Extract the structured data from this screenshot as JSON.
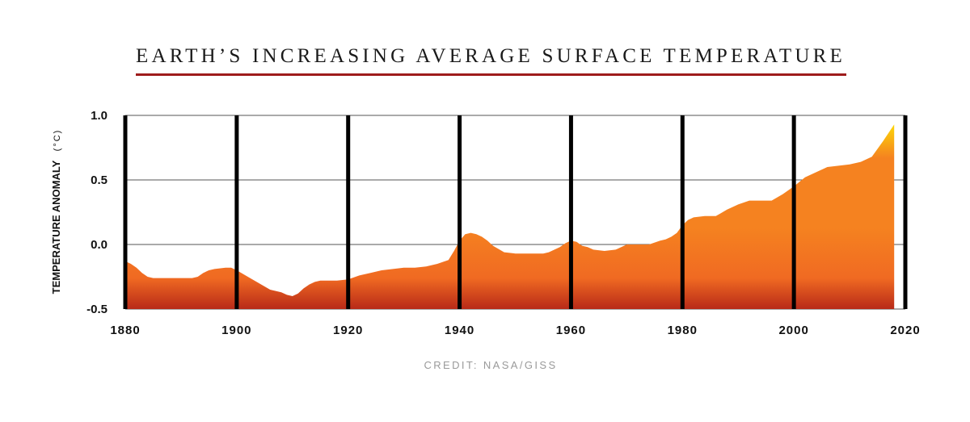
{
  "title": "EARTH’S INCREASING AVERAGE SURFACE TEMPERATURE",
  "credit": "CREDIT: NASA/GISS",
  "colors": {
    "title_rule": "#9e1b1b",
    "gradient_top": "#ffee00",
    "gradient_mid": "#f58220",
    "gradient_low": "#f06a22",
    "gradient_bottom": "#b82a18",
    "grid": "#555555",
    "year_bars": "#000000"
  },
  "chart_data": {
    "type": "area",
    "title": "EARTH’S INCREASING AVERAGE SURFACE TEMPERATURE",
    "ylabel": "TEMPERATURE ANOMALY",
    "ylabel_unit": "(°C)",
    "xlabel": "",
    "xlim": [
      1880,
      2020
    ],
    "ylim": [
      -0.5,
      1.0
    ],
    "xticks": [
      "1880",
      "1900",
      "1920",
      "1940",
      "1960",
      "1980",
      "2000",
      "2020"
    ],
    "yticks": [
      "1.0",
      "0.5",
      "0.0",
      "-0.5"
    ],
    "ytick_values": [
      1.0,
      0.5,
      0.0,
      -0.5
    ],
    "xtick_values": [
      1880,
      1900,
      1920,
      1940,
      1960,
      1980,
      2000,
      2020
    ],
    "grid": true,
    "x": [
      1880,
      1881,
      1882,
      1883,
      1884,
      1885,
      1886,
      1888,
      1890,
      1892,
      1893,
      1894,
      1895,
      1896,
      1898,
      1899,
      1900,
      1902,
      1904,
      1906,
      1908,
      1909,
      1910,
      1911,
      1912,
      1913,
      1914,
      1915,
      1916,
      1918,
      1920,
      1922,
      1924,
      1926,
      1928,
      1930,
      1932,
      1934,
      1936,
      1938,
      1939,
      1940,
      1941,
      1942,
      1943,
      1944,
      1945,
      1946,
      1948,
      1950,
      1952,
      1954,
      1955,
      1956,
      1958,
      1959,
      1960,
      1961,
      1962,
      1963,
      1964,
      1966,
      1968,
      1969,
      1970,
      1972,
      1974,
      1976,
      1977,
      1978,
      1979,
      1980,
      1981,
      1982,
      1984,
      1986,
      1988,
      1990,
      1992,
      1994,
      1996,
      1998,
      2000,
      2002,
      2004,
      2006,
      2008,
      2010,
      2012,
      2014,
      2016,
      2018
    ],
    "values": [
      -0.13,
      -0.15,
      -0.18,
      -0.22,
      -0.25,
      -0.26,
      -0.26,
      -0.26,
      -0.26,
      -0.26,
      -0.25,
      -0.22,
      -0.2,
      -0.19,
      -0.18,
      -0.18,
      -0.2,
      -0.25,
      -0.3,
      -0.35,
      -0.37,
      -0.39,
      -0.4,
      -0.38,
      -0.34,
      -0.31,
      -0.29,
      -0.28,
      -0.28,
      -0.28,
      -0.27,
      -0.24,
      -0.22,
      -0.2,
      -0.19,
      -0.18,
      -0.18,
      -0.17,
      -0.15,
      -0.12,
      -0.05,
      0.03,
      0.08,
      0.09,
      0.08,
      0.06,
      0.03,
      -0.01,
      -0.06,
      -0.07,
      -0.07,
      -0.07,
      -0.07,
      -0.06,
      -0.02,
      0.01,
      0.03,
      0.02,
      -0.01,
      -0.02,
      -0.04,
      -0.05,
      -0.04,
      -0.02,
      0.0,
      0.0,
      0.0,
      0.03,
      0.04,
      0.06,
      0.09,
      0.15,
      0.19,
      0.21,
      0.22,
      0.22,
      0.27,
      0.31,
      0.34,
      0.34,
      0.34,
      0.39,
      0.45,
      0.52,
      0.56,
      0.6,
      0.61,
      0.62,
      0.64,
      0.68,
      0.8,
      0.93
    ]
  }
}
